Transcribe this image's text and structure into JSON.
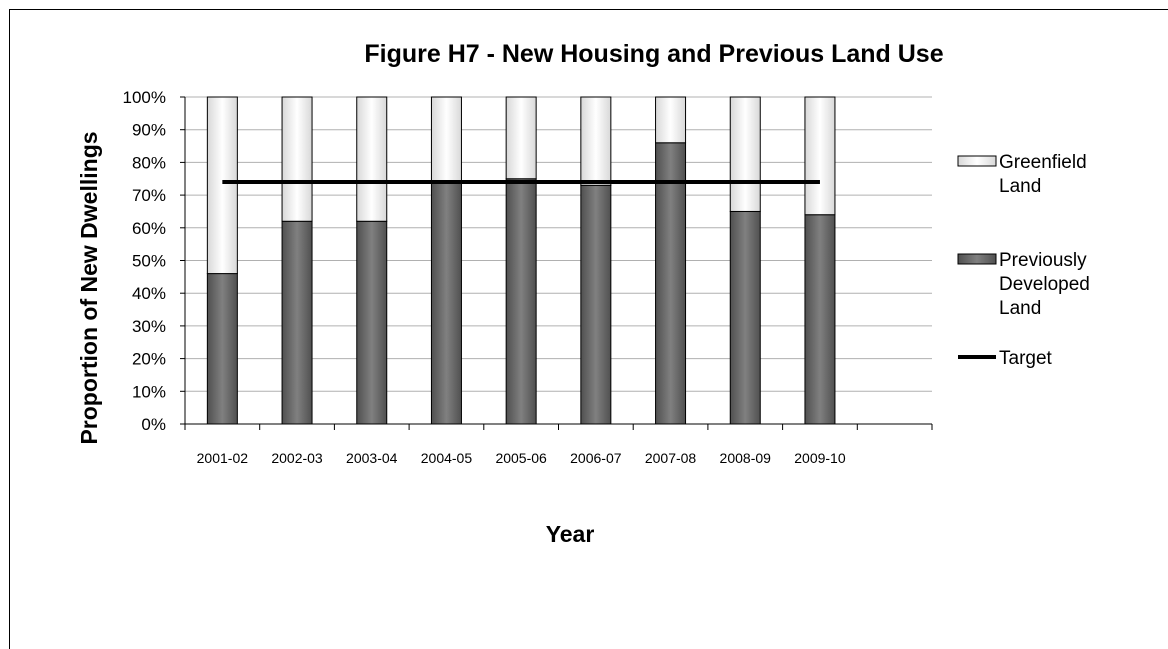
{
  "chart_data": {
    "type": "bar",
    "stacked": true,
    "title": "Figure H7 - New Housing and Previous Land Use",
    "xlabel": "Year",
    "ylabel": "Proportion of New Dwellings",
    "ylim": [
      0,
      100
    ],
    "y_ticks": [
      "0%",
      "10%",
      "20%",
      "30%",
      "40%",
      "50%",
      "60%",
      "70%",
      "80%",
      "90%",
      "100%"
    ],
    "categories": [
      "2001-02",
      "2002-03",
      "2003-04",
      "2004-05",
      "2005-06",
      "2006-07",
      "2007-08",
      "2008-09",
      "2009-10",
      ""
    ],
    "series": [
      {
        "name": "Previously Developed Land",
        "color": "#666666",
        "values": [
          46,
          62,
          62,
          74,
          75,
          73,
          86,
          65,
          64,
          null
        ]
      },
      {
        "name": "Greenfield Land",
        "color": "#ffffff",
        "values": [
          54,
          38,
          38,
          26,
          25,
          27,
          14,
          35,
          36,
          null
        ]
      }
    ],
    "target": {
      "name": "Target",
      "value": 74,
      "color": "#000000"
    },
    "grid": true,
    "legend_position": "right",
    "legend": [
      {
        "lines": [
          "Greenfield",
          "Land"
        ],
        "kind": "bar",
        "color": "#ffffff"
      },
      {
        "lines": [
          "Previously",
          "Developed",
          "Land"
        ],
        "kind": "bar",
        "color": "#666666"
      },
      {
        "lines": [
          "Target"
        ],
        "kind": "line",
        "color": "#000000"
      }
    ]
  }
}
